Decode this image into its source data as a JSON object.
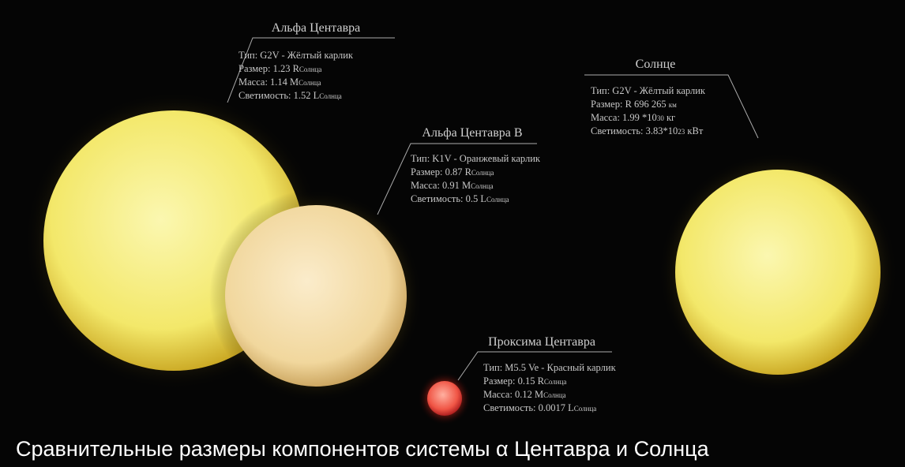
{
  "stars": [
    {
      "name": "Альфа Центавра",
      "lines": [
        {
          "main": "Тип: G2V - Жёлтый карлик"
        },
        {
          "main": "Размер: 1.23 R",
          "small": "Солнца"
        },
        {
          "main": "Масса:  1.14 M",
          "small": "Солнца"
        },
        {
          "main": "Светимость: 1.52 L",
          "small": "Солнца"
        }
      ]
    },
    {
      "name": "Альфа Центавра B",
      "lines": [
        {
          "main": "Тип: K1V - Оранжевый карлик"
        },
        {
          "main": "Размер: 0.87 R",
          "small": "Солнца"
        },
        {
          "main": "Масса:  0.91 M",
          "small": "Солнца"
        },
        {
          "main": " Светимость: 0.5 L",
          "small": "Солнца"
        }
      ]
    },
    {
      "name": "Солнце",
      "lines": [
        {
          "main": "Тип: G2V - Жёлтый карлик"
        },
        {
          "main": "Размер: R 696 265 ",
          "small": "км"
        },
        {
          "main": "Масса:  1.99 *10",
          "small": "30",
          "tail": " кг"
        },
        {
          "main": "Светимость: 3.83*10",
          "small": "23",
          "tail": " кВт"
        }
      ]
    },
    {
      "name": "Проксима Центавра",
      "lines": [
        {
          "main": "Тип: M5.5 Ve - Красный карлик"
        },
        {
          "main": "Размер: 0.15 R",
          "small": "Солнца"
        },
        {
          "main": "Масса:  0.12 M",
          "small": "Солнца"
        },
        {
          "main": " Светимость: 0.0017 L",
          "small": "Солнца"
        }
      ]
    }
  ],
  "caption": "Сравнительные размеры компонентов системы α Центавра и Солнца"
}
